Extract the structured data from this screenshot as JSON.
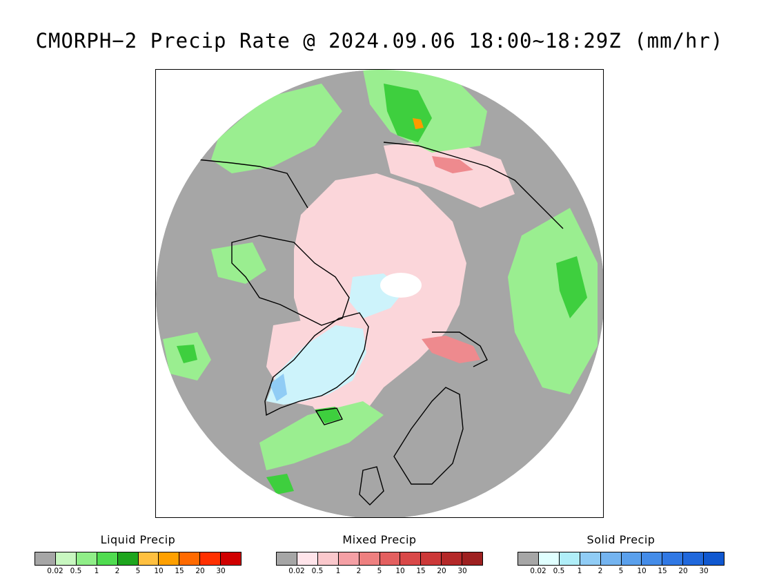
{
  "title": "CMORPH−2 Precip Rate @ 2024.09.06 18:00~18:29Z (mm/hr)",
  "colors": {
    "no_precip": "#a6a6a6",
    "land_outline": "#000000"
  },
  "legends": [
    {
      "title": "Liquid Precip",
      "colors": [
        "#a6a6a6",
        "#c8f7c0",
        "#90ee88",
        "#50dc50",
        "#1ea51e",
        "#ffc040",
        "#ffa000",
        "#ff6a00",
        "#ff3000",
        "#d00000"
      ],
      "ticks": [
        "0.02",
        "0.5",
        "1",
        "2",
        "5",
        "10",
        "15",
        "20",
        "30"
      ]
    },
    {
      "title": "Mixed Precip",
      "colors": [
        "#a6a6a6",
        "#ffe4ea",
        "#fac8cc",
        "#f5a0a5",
        "#ee8080",
        "#e46060",
        "#d94848",
        "#cc3838",
        "#b42828",
        "#9e2020"
      ],
      "ticks": [
        "0.02",
        "0.5",
        "1",
        "2",
        "5",
        "10",
        "15",
        "20",
        "30"
      ]
    },
    {
      "title": "Solid Precip",
      "colors": [
        "#a6a6a6",
        "#e0ffff",
        "#b0eef8",
        "#90ccf5",
        "#74b4f0",
        "#5aa0ec",
        "#448ce8",
        "#3078e4",
        "#2068dc",
        "#1058d0"
      ],
      "ticks": [
        "0.02",
        "0.5",
        "1",
        "2",
        "5",
        "10",
        "15",
        "20",
        "30"
      ]
    }
  ]
}
